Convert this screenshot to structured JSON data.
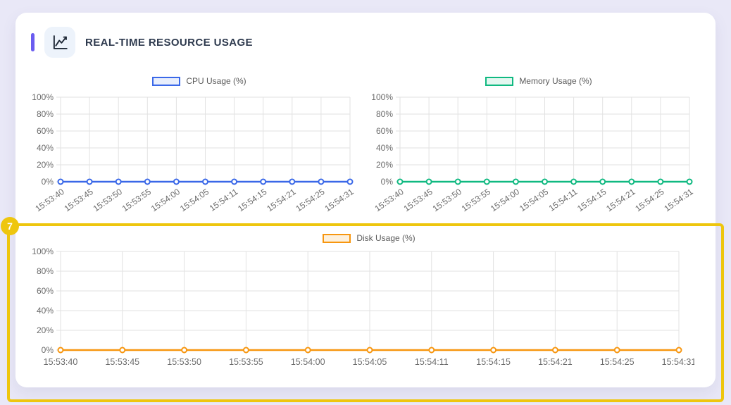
{
  "header": {
    "title": "REAL-TIME RESOURCE USAGE",
    "icon": "line-chart-icon"
  },
  "annotation": {
    "badge_label": "7",
    "color": "#eec60e"
  },
  "colors": {
    "page_background": "#e9e8f7",
    "card_background": "#ffffff",
    "accent_bar": "#6a5cf0",
    "title_text": "#2e3a4e",
    "grid": "#e2e2e2",
    "axis_text": "#6b6b6b",
    "legend_text": "#5a5a5a"
  },
  "chart_data": [
    {
      "id": "cpu",
      "type": "line",
      "legend_label": "CPU Usage (%)",
      "series_color": "#3a68e8",
      "legend_fill": "#e8eefc",
      "categories": [
        "15:53:40",
        "15:53:45",
        "15:53:50",
        "15:53:55",
        "15:54:00",
        "15:54:05",
        "15:54:11",
        "15:54:15",
        "15:54:21",
        "15:54:25",
        "15:54:31"
      ],
      "values": [
        0,
        0,
        0,
        0,
        0,
        0,
        0,
        0,
        0,
        0,
        0
      ],
      "ylim": [
        0,
        100
      ],
      "ytick_values": [
        0,
        20,
        40,
        60,
        80,
        100
      ],
      "ytick_labels": [
        "0%",
        "20%",
        "40%",
        "60%",
        "80%",
        "100%"
      ],
      "grid": true,
      "legend_position": "top",
      "x_label_rotation": -35
    },
    {
      "id": "memory",
      "type": "line",
      "legend_label": "Memory Usage (%)",
      "series_color": "#10b981",
      "legend_fill": "#e4f7f0",
      "categories": [
        "15:53:40",
        "15:53:45",
        "15:53:50",
        "15:53:55",
        "15:54:00",
        "15:54:05",
        "15:54:11",
        "15:54:15",
        "15:54:21",
        "15:54:25",
        "15:54:31"
      ],
      "values": [
        0,
        0,
        0,
        0,
        0,
        0,
        0,
        0,
        0,
        0,
        0
      ],
      "ylim": [
        0,
        100
      ],
      "ytick_values": [
        0,
        20,
        40,
        60,
        80,
        100
      ],
      "ytick_labels": [
        "0%",
        "20%",
        "40%",
        "60%",
        "80%",
        "100%"
      ],
      "grid": true,
      "legend_position": "top",
      "x_label_rotation": -35
    },
    {
      "id": "disk",
      "type": "line",
      "legend_label": "Disk Usage (%)",
      "series_color": "#f7960f",
      "legend_fill": "#fdf0dc",
      "categories": [
        "15:53:40",
        "15:53:45",
        "15:53:50",
        "15:53:55",
        "15:54:00",
        "15:54:05",
        "15:54:11",
        "15:54:15",
        "15:54:21",
        "15:54:25",
        "15:54:31"
      ],
      "values": [
        0,
        0,
        0,
        0,
        0,
        0,
        0,
        0,
        0,
        0,
        0
      ],
      "ylim": [
        0,
        100
      ],
      "ytick_values": [
        0,
        20,
        40,
        60,
        80,
        100
      ],
      "ytick_labels": [
        "0%",
        "20%",
        "40%",
        "60%",
        "80%",
        "100%"
      ],
      "grid": true,
      "legend_position": "top",
      "x_label_rotation": 0
    }
  ]
}
